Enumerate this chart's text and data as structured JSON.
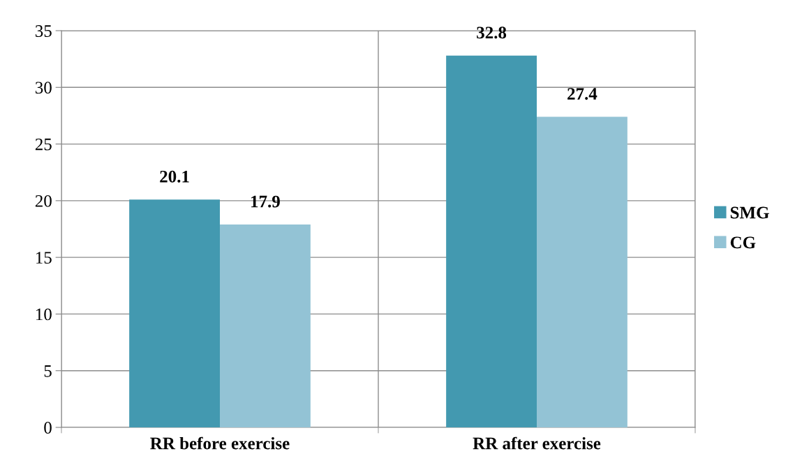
{
  "chart_data": {
    "type": "bar",
    "categories": [
      "RR before exercise",
      "RR after exercise"
    ],
    "series": [
      {
        "name": "SMG",
        "color": "#4399b0",
        "values": [
          20.1,
          32.8
        ]
      },
      {
        "name": "CG",
        "color": "#93c3d5",
        "values": [
          17.9,
          27.4
        ]
      }
    ],
    "ylim": [
      0,
      35
    ],
    "yticks": [
      0,
      5,
      10,
      15,
      20,
      25,
      30,
      35
    ],
    "grid": true,
    "legend": "right",
    "data_labels": true
  }
}
